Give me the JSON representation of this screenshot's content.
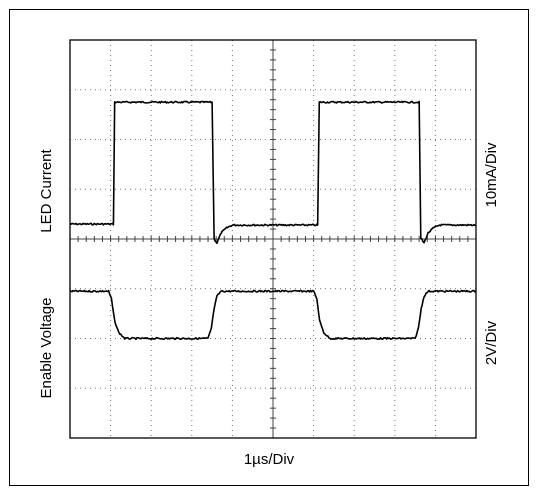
{
  "chart_data": {
    "type": "line",
    "title": "",
    "xlabel": "1µs/Div",
    "x_divisions": 10,
    "y_divisions": 8,
    "grid": true,
    "x_unit": "div",
    "y_unit": "div",
    "panels": [
      {
        "name_label": "LED Current",
        "scale_label": "10mA/Div",
        "ylim": [
          0,
          4
        ],
        "series": [
          {
            "x": [
              0,
              1.07,
              1.1,
              3.5,
              3.55,
              3.62,
              3.72,
              3.85,
              4.0,
              6.1,
              6.14,
              8.6,
              8.64,
              8.72,
              8.82,
              8.95,
              9.1,
              10
            ],
            "y": [
              0.3,
              0.3,
              2.75,
              2.75,
              0.0,
              -0.08,
              0.12,
              0.22,
              0.28,
              0.28,
              2.75,
              2.75,
              0.02,
              -0.08,
              0.12,
              0.22,
              0.28,
              0.28
            ]
          }
        ]
      },
      {
        "name_label": "Enable Voltage",
        "scale_label": "2V/Div",
        "ylim": [
          0,
          4
        ],
        "series": [
          {
            "x": [
              0,
              0.95,
              1.02,
              1.1,
              1.2,
              1.35,
              3.4,
              3.48,
              3.55,
              3.62,
              3.72,
              6.0,
              6.08,
              6.15,
              6.25,
              6.4,
              8.5,
              8.58,
              8.65,
              8.72,
              8.82,
              10
            ],
            "y": [
              2.95,
              2.95,
              2.8,
              2.35,
              2.12,
              2.0,
              2.0,
              2.2,
              2.6,
              2.85,
              2.95,
              2.95,
              2.8,
              2.35,
              2.12,
              2.0,
              2.0,
              2.2,
              2.6,
              2.85,
              2.95,
              2.95
            ]
          }
        ]
      }
    ]
  }
}
